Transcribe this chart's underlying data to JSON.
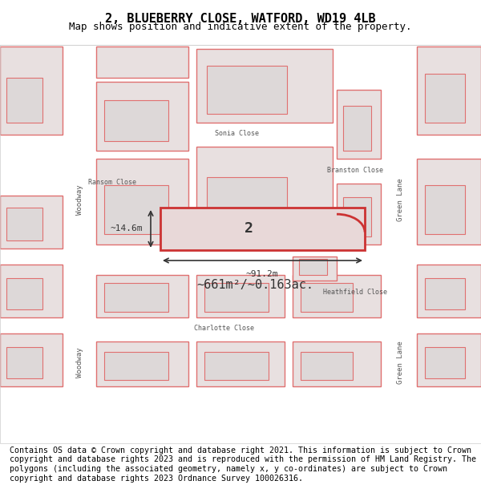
{
  "title": "2, BLUEBERRY CLOSE, WATFORD, WD19 4LB",
  "subtitle": "Map shows position and indicative extent of the property.",
  "footer": "Contains OS data © Crown copyright and database right 2021. This information is subject to Crown copyright and database rights 2023 and is reproduced with the permission of HM Land Registry. The polygons (including the associated geometry, namely x, y co-ordinates) are subject to Crown copyright and database rights 2023 Ordnance Survey 100026316.",
  "bg_color": "#f5f0f0",
  "map_bg": "#f5f0f0",
  "road_color": "#ffffff",
  "block_fill": "#e8e0e0",
  "block_edge": "#e07070",
  "highlight_fill": "#e8d8d8",
  "highlight_edge": "#cc3333",
  "dim_color": "#333333",
  "area_text": "~661m²/~0.163ac.",
  "width_text": "~91.2m",
  "height_text": "~14.6m",
  "plot_label": "2",
  "title_fontsize": 11,
  "subtitle_fontsize": 9,
  "footer_fontsize": 7.2
}
